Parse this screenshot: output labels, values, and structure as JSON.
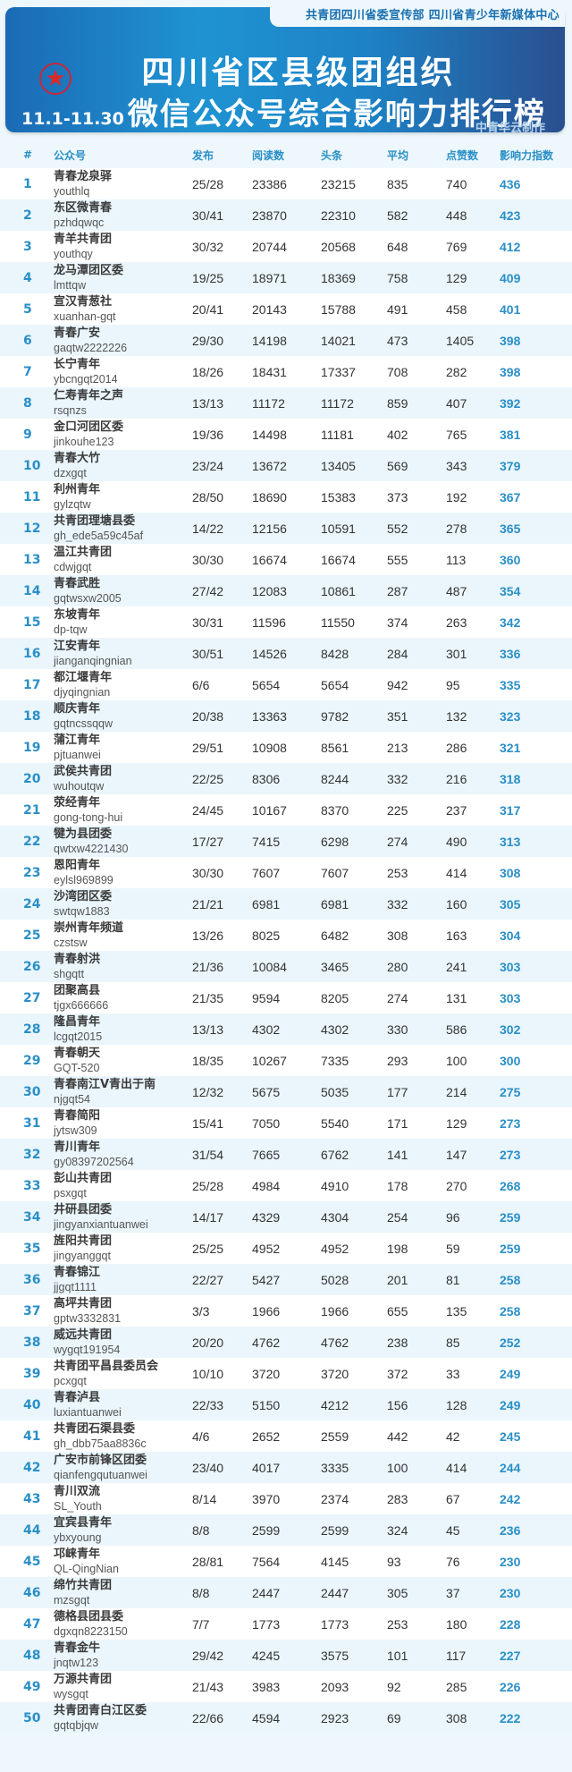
{
  "header": {
    "publisher": "共青团四川省委宣传部 四川省青少年新媒体中心",
    "title_line1": "四川省区县级团组织",
    "date_range": "11.1-11.30",
    "title_line2": "微信公众号综合影响力排行榜",
    "credit": "中青华云制作",
    "emblem_icon": "red-star",
    "colors": {
      "banner": "#1f93d2",
      "accent": "#2a8fc7",
      "emblem": "#d92a2a"
    }
  },
  "table": {
    "columns": [
      "#",
      "公众号",
      "发布",
      "阅读数",
      "头条",
      "平均",
      "点赞数",
      "影响力指数"
    ],
    "rows": [
      {
        "rank": "1",
        "name": "青春龙泉驿",
        "id": "youthlq",
        "pub": "25/28",
        "reads": "23386",
        "headline": "23215",
        "avg": "835",
        "likes": "740",
        "index": "436"
      },
      {
        "rank": "2",
        "name": "东区微青春",
        "id": "pzhdqwqc",
        "pub": "30/41",
        "reads": "23870",
        "headline": "22310",
        "avg": "582",
        "likes": "448",
        "index": "423"
      },
      {
        "rank": "3",
        "name": "青羊共青团",
        "id": "youthqy",
        "pub": "30/32",
        "reads": "20744",
        "headline": "20568",
        "avg": "648",
        "likes": "769",
        "index": "412"
      },
      {
        "rank": "4",
        "name": "龙马潭团区委",
        "id": "lmttqw",
        "pub": "19/25",
        "reads": "18971",
        "headline": "18369",
        "avg": "758",
        "likes": "129",
        "index": "409"
      },
      {
        "rank": "5",
        "name": "宣汉青葱社",
        "id": "xuanhan-gqt",
        "pub": "20/41",
        "reads": "20143",
        "headline": "15788",
        "avg": "491",
        "likes": "458",
        "index": "401"
      },
      {
        "rank": "6",
        "name": "青春广安",
        "id": "gaqtw2222226",
        "pub": "29/30",
        "reads": "14198",
        "headline": "14021",
        "avg": "473",
        "likes": "1405",
        "index": "398"
      },
      {
        "rank": "7",
        "name": "长宁青年",
        "id": "ybcngqt2014",
        "pub": "18/26",
        "reads": "18431",
        "headline": "17337",
        "avg": "708",
        "likes": "282",
        "index": "398"
      },
      {
        "rank": "8",
        "name": "仁寿青年之声",
        "id": "rsqnzs",
        "pub": "13/13",
        "reads": "11172",
        "headline": "11172",
        "avg": "859",
        "likes": "407",
        "index": "392"
      },
      {
        "rank": "9",
        "name": "金口河团区委",
        "id": "jinkouhe123",
        "pub": "19/36",
        "reads": "14498",
        "headline": "11181",
        "avg": "402",
        "likes": "765",
        "index": "381"
      },
      {
        "rank": "10",
        "name": "青春大竹",
        "id": "dzxgqt",
        "pub": "23/24",
        "reads": "13672",
        "headline": "13405",
        "avg": "569",
        "likes": "343",
        "index": "379"
      },
      {
        "rank": "11",
        "name": "利州青年",
        "id": "gylzqtw",
        "pub": "28/50",
        "reads": "18690",
        "headline": "15383",
        "avg": "373",
        "likes": "192",
        "index": "367"
      },
      {
        "rank": "12",
        "name": "共青团理塘县委",
        "id": "gh_ede5a59c45af",
        "pub": "14/22",
        "reads": "12156",
        "headline": "10591",
        "avg": "552",
        "likes": "278",
        "index": "365"
      },
      {
        "rank": "13",
        "name": "温江共青团",
        "id": "cdwjgqt",
        "pub": "30/30",
        "reads": "16674",
        "headline": "16674",
        "avg": "555",
        "likes": "113",
        "index": "360"
      },
      {
        "rank": "14",
        "name": "青春武胜",
        "id": "gqtwsxw2005",
        "pub": "27/42",
        "reads": "12083",
        "headline": "10861",
        "avg": "287",
        "likes": "487",
        "index": "354"
      },
      {
        "rank": "15",
        "name": "东坡青年",
        "id": "dp-tqw",
        "pub": "30/31",
        "reads": "11596",
        "headline": "11550",
        "avg": "374",
        "likes": "263",
        "index": "342"
      },
      {
        "rank": "16",
        "name": "江安青年",
        "id": "jianganqingnian",
        "pub": "30/51",
        "reads": "14526",
        "headline": "8428",
        "avg": "284",
        "likes": "301",
        "index": "336"
      },
      {
        "rank": "17",
        "name": "都江堰青年",
        "id": "djyqingnian",
        "pub": "6/6",
        "reads": "5654",
        "headline": "5654",
        "avg": "942",
        "likes": "95",
        "index": "335"
      },
      {
        "rank": "18",
        "name": "顺庆青年",
        "id": "gqtncssqqw",
        "pub": "20/38",
        "reads": "13363",
        "headline": "9782",
        "avg": "351",
        "likes": "132",
        "index": "323"
      },
      {
        "rank": "19",
        "name": "蒲江青年",
        "id": "pjtuanwei",
        "pub": "29/51",
        "reads": "10908",
        "headline": "8561",
        "avg": "213",
        "likes": "286",
        "index": "321"
      },
      {
        "rank": "20",
        "name": "武侯共青团",
        "id": "wuhoutqw",
        "pub": "22/25",
        "reads": "8306",
        "headline": "8244",
        "avg": "332",
        "likes": "216",
        "index": "318"
      },
      {
        "rank": "21",
        "name": "荥经青年",
        "id": "gong-tong-hui",
        "pub": "24/45",
        "reads": "10167",
        "headline": "8370",
        "avg": "225",
        "likes": "237",
        "index": "317"
      },
      {
        "rank": "22",
        "name": "犍为县团委",
        "id": "qwtxw4221430",
        "pub": "17/27",
        "reads": "7415",
        "headline": "6298",
        "avg": "274",
        "likes": "490",
        "index": "313"
      },
      {
        "rank": "23",
        "name": "恩阳青年",
        "id": "eylsl969899",
        "pub": "30/30",
        "reads": "7607",
        "headline": "7607",
        "avg": "253",
        "likes": "414",
        "index": "308"
      },
      {
        "rank": "24",
        "name": "沙湾团区委",
        "id": "swtqw1883",
        "pub": "21/21",
        "reads": "6981",
        "headline": "6981",
        "avg": "332",
        "likes": "160",
        "index": "305"
      },
      {
        "rank": "25",
        "name": "崇州青年频道",
        "id": "czstsw",
        "pub": "13/26",
        "reads": "8025",
        "headline": "6482",
        "avg": "308",
        "likes": "163",
        "index": "304"
      },
      {
        "rank": "26",
        "name": "青春射洪",
        "id": "shgqtt",
        "pub": "21/36",
        "reads": "10084",
        "headline": "3465",
        "avg": "280",
        "likes": "241",
        "index": "303"
      },
      {
        "rank": "27",
        "name": "团聚高县",
        "id": "tjgx666666",
        "pub": "21/35",
        "reads": "9594",
        "headline": "8205",
        "avg": "274",
        "likes": "131",
        "index": "303"
      },
      {
        "rank": "28",
        "name": "隆昌青年",
        "id": "lcgqt2015",
        "pub": "13/13",
        "reads": "4302",
        "headline": "4302",
        "avg": "330",
        "likes": "586",
        "index": "302"
      },
      {
        "rank": "29",
        "name": "青春朝天",
        "id": "GQT-520",
        "pub": "18/35",
        "reads": "10267",
        "headline": "7335",
        "avg": "293",
        "likes": "100",
        "index": "300"
      },
      {
        "rank": "30",
        "name": "青春南江V青出于南",
        "id": "njgqt54",
        "pub": "12/32",
        "reads": "5675",
        "headline": "5035",
        "avg": "177",
        "likes": "214",
        "index": "275"
      },
      {
        "rank": "31",
        "name": "青春简阳",
        "id": "jytsw309",
        "pub": "15/41",
        "reads": "7050",
        "headline": "5540",
        "avg": "171",
        "likes": "129",
        "index": "273"
      },
      {
        "rank": "32",
        "name": "青川青年",
        "id": "gy08397202564",
        "pub": "31/54",
        "reads": "7665",
        "headline": "6762",
        "avg": "141",
        "likes": "147",
        "index": "273"
      },
      {
        "rank": "33",
        "name": "彭山共青团",
        "id": "psxgqt",
        "pub": "25/28",
        "reads": "4984",
        "headline": "4910",
        "avg": "178",
        "likes": "270",
        "index": "268"
      },
      {
        "rank": "34",
        "name": "井研县团委",
        "id": "jingyanxiantuanwei",
        "pub": "14/17",
        "reads": "4329",
        "headline": "4304",
        "avg": "254",
        "likes": "96",
        "index": "259"
      },
      {
        "rank": "35",
        "name": "旌阳共青团",
        "id": "jingyanggqt",
        "pub": "25/25",
        "reads": "4952",
        "headline": "4952",
        "avg": "198",
        "likes": "59",
        "index": "259"
      },
      {
        "rank": "36",
        "name": "青春锦江",
        "id": "jjgqt1111",
        "pub": "22/27",
        "reads": "5427",
        "headline": "5028",
        "avg": "201",
        "likes": "81",
        "index": "258"
      },
      {
        "rank": "37",
        "name": "高坪共青团",
        "id": "gptw3332831",
        "pub": "3/3",
        "reads": "1966",
        "headline": "1966",
        "avg": "655",
        "likes": "135",
        "index": "258"
      },
      {
        "rank": "38",
        "name": "威远共青团",
        "id": "wygqt191954",
        "pub": "20/20",
        "reads": "4762",
        "headline": "4762",
        "avg": "238",
        "likes": "85",
        "index": "252"
      },
      {
        "rank": "39",
        "name": "共青团平昌县委员会",
        "id": "pcxgqt",
        "pub": "10/10",
        "reads": "3720",
        "headline": "3720",
        "avg": "372",
        "likes": "33",
        "index": "249"
      },
      {
        "rank": "40",
        "name": "青春泸县",
        "id": "luxiantuanwei",
        "pub": "22/33",
        "reads": "5150",
        "headline": "4212",
        "avg": "156",
        "likes": "128",
        "index": "249"
      },
      {
        "rank": "41",
        "name": "共青团石渠县委",
        "id": "gh_dbb75aa8836c",
        "pub": "4/6",
        "reads": "2652",
        "headline": "2559",
        "avg": "442",
        "likes": "42",
        "index": "245"
      },
      {
        "rank": "42",
        "name": "广安市前锋区团委",
        "id": "qianfengqutuanwei",
        "pub": "23/40",
        "reads": "4017",
        "headline": "3335",
        "avg": "100",
        "likes": "414",
        "index": "244"
      },
      {
        "rank": "43",
        "name": "青川双流",
        "id": "SL_Youth",
        "pub": "8/14",
        "reads": "3970",
        "headline": "2374",
        "avg": "283",
        "likes": "67",
        "index": "242"
      },
      {
        "rank": "44",
        "name": "宜宾县青年",
        "id": "ybxyoung",
        "pub": "8/8",
        "reads": "2599",
        "headline": "2599",
        "avg": "324",
        "likes": "45",
        "index": "236"
      },
      {
        "rank": "45",
        "name": "邛崃青年",
        "id": "QL-QingNian",
        "pub": "28/81",
        "reads": "7564",
        "headline": "4145",
        "avg": "93",
        "likes": "76",
        "index": "230"
      },
      {
        "rank": "46",
        "name": "绵竹共青团",
        "id": "mzsgqt",
        "pub": "8/8",
        "reads": "2447",
        "headline": "2447",
        "avg": "305",
        "likes": "37",
        "index": "230"
      },
      {
        "rank": "47",
        "name": "德格县团县委",
        "id": "dgxqn8223150",
        "pub": "7/7",
        "reads": "1773",
        "headline": "1773",
        "avg": "253",
        "likes": "180",
        "index": "228"
      },
      {
        "rank": "48",
        "name": "青春金牛",
        "id": "jnqtw123",
        "pub": "29/42",
        "reads": "4245",
        "headline": "3575",
        "avg": "101",
        "likes": "117",
        "index": "227"
      },
      {
        "rank": "49",
        "name": "万源共青团",
        "id": "wysgqt",
        "pub": "21/43",
        "reads": "3983",
        "headline": "2093",
        "avg": "92",
        "likes": "285",
        "index": "226"
      },
      {
        "rank": "50",
        "name": "共青团青白江区委",
        "id": "gqtqbjqw",
        "pub": "22/66",
        "reads": "4594",
        "headline": "2923",
        "avg": "69",
        "likes": "308",
        "index": "222"
      }
    ]
  }
}
